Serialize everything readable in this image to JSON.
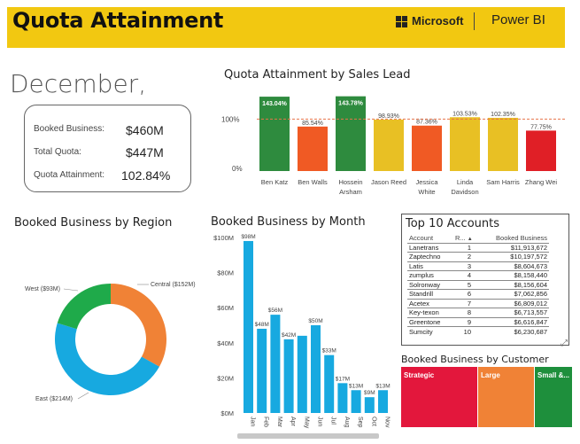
{
  "header": {
    "title": "Quota Attainment",
    "brand": "Microsoft",
    "product": "Power BI"
  },
  "period": "December,",
  "kpi": {
    "booked_label": "Booked Business:",
    "booked_value": "$460M",
    "quota_label": "Total Quota:",
    "quota_value": "$447M",
    "attain_label": "Quota Attainment:",
    "attain_value": "102.84%"
  },
  "colors": {
    "header_bg": "#f2c811",
    "green": "#2e8b3e",
    "orange_red": "#f05a24",
    "yellow": "#e8c024",
    "red": "#e01f26",
    "orange": "#f08236",
    "blue": "#17a9e0",
    "donut_green": "#1faa4a",
    "target_line": "#e8734a",
    "segment_strategic": "#e3173c",
    "segment_large": "#f08236",
    "segment_small": "#1e8f3c"
  },
  "chart_data": [
    {
      "type": "bar",
      "title": "Quota Attainment by Sales Lead",
      "categories": [
        "Ben Katz",
        "Ben Walls",
        "Hossein Arsham",
        "Jason Reed",
        "Jessica White",
        "Linda Davidson",
        "Sam Harris",
        "Zhang Wei"
      ],
      "category_lines": [
        [
          "Ben Katz"
        ],
        [
          "Ben Walls"
        ],
        [
          "Hossein",
          "Arsham"
        ],
        [
          "Jason Reed"
        ],
        [
          "Jessica",
          "White"
        ],
        [
          "Linda",
          "Davidson"
        ],
        [
          "Sam Harris"
        ],
        [
          "Zhang Wei"
        ]
      ],
      "values": [
        143.04,
        85.54,
        143.78,
        98.93,
        87.36,
        103.53,
        102.35,
        77.75
      ],
      "labels": [
        "143.04%",
        "85.54%",
        "143.78%",
        "98.93%",
        "87.36%",
        "103.53%",
        "102.35%",
        "77.75%"
      ],
      "colors": [
        "#2e8b3e",
        "#f05a24",
        "#2e8b3e",
        "#e8c024",
        "#f05a24",
        "#e8c024",
        "#e8c024",
        "#e01f26"
      ],
      "yticks": [
        "0%",
        "100%"
      ],
      "target": 100,
      "ylim": [
        0,
        150
      ]
    },
    {
      "type": "pie",
      "title": "Booked Business by Region",
      "categories": [
        "Central",
        "East",
        "West"
      ],
      "values": [
        152,
        214,
        93
      ],
      "labels": [
        "Central ($152M)",
        "East ($214M)",
        "West ($93M)"
      ],
      "colors": [
        "#f08236",
        "#17a9e0",
        "#1faa4a"
      ]
    },
    {
      "type": "bar",
      "title": "Booked Business by Month",
      "categories": [
        "Jan",
        "Feb",
        "Mar",
        "Apr",
        "May",
        "Jun",
        "Jul",
        "Aug",
        "Sep",
        "Oct",
        "Nov"
      ],
      "values": [
        98,
        48,
        56,
        42,
        44,
        50,
        33,
        17,
        13,
        9,
        13
      ],
      "labels": [
        "$98M",
        "$48M",
        "$56M",
        "$42M",
        "",
        "$50M",
        "$33M",
        "$17M",
        "$13M",
        "$9M",
        "$13M"
      ],
      "yticks": [
        "$0M",
        "$20M",
        "$40M",
        "$60M",
        "$80M",
        "$100M"
      ],
      "ylim": [
        0,
        100
      ],
      "color": "#17a9e0"
    }
  ],
  "accounts": {
    "title": "Top 10 Accounts",
    "columns": [
      "Account",
      "R...",
      "Booked Business"
    ],
    "rows": [
      [
        "Lanetrans",
        "1",
        "$11,913,672"
      ],
      [
        "Zaptechno",
        "2",
        "$10,197,572"
      ],
      [
        "Latis",
        "3",
        "$8,604,673"
      ],
      [
        "zumplus",
        "4",
        "$8,158,440"
      ],
      [
        "Solronway",
        "5",
        "$8,156,604"
      ],
      [
        "Standrill",
        "6",
        "$7,062,856"
      ],
      [
        "Acetex",
        "7",
        "$6,809,012"
      ],
      [
        "Key-texon",
        "8",
        "$6,713,557"
      ],
      [
        "Greentone",
        "9",
        "$6,616,847"
      ],
      [
        "Sumcity",
        "10",
        "$6,230,687"
      ]
    ]
  },
  "segment": {
    "title": "Booked Business by Customer Segment",
    "items": [
      "Strategic",
      "Large",
      "Small &..."
    ]
  }
}
